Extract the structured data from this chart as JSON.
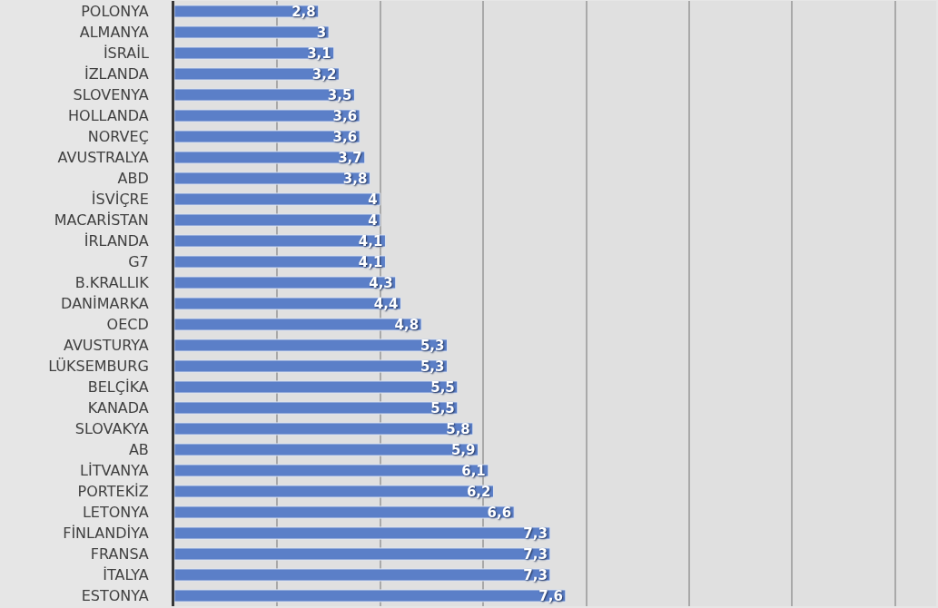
{
  "chart_data": {
    "type": "bar",
    "orientation": "horizontal",
    "categories": [
      "POLONYA",
      "ALMANYA",
      "İSRAİL",
      "İZLANDA",
      "SLOVENYA",
      "HOLLANDA",
      "NORVEÇ",
      "AVUSTRALYA",
      "ABD",
      "İSVİÇRE",
      "MACARİSTAN",
      "İRLANDA",
      "G7",
      "B.KRALLIK",
      "DANİMARKA",
      "OECD",
      "AVUSTURYA",
      "LÜKSEMBURG",
      "BELÇİKA",
      "KANADA",
      "SLOVAKYA",
      "AB",
      "LİTVANYA",
      "PORTEKİZ",
      "LETONYA",
      "FİNLANDİYA",
      "FRANSA",
      "İTALYA",
      "ESTONYA"
    ],
    "values": [
      2.8,
      3,
      3.1,
      3.2,
      3.5,
      3.6,
      3.6,
      3.7,
      3.8,
      4,
      4,
      4.1,
      4.1,
      4.3,
      4.4,
      4.8,
      5.3,
      5.3,
      5.5,
      5.5,
      5.8,
      5.9,
      6.1,
      6.2,
      6.6,
      7.3,
      7.3,
      7.3,
      7.6
    ],
    "value_labels": [
      "2,8",
      "3",
      "3,1",
      "3,2",
      "3,5",
      "3,6",
      "3,6",
      "3,7",
      "3,8",
      "4",
      "4",
      "4,1",
      "4,1",
      "4,3",
      "4,4",
      "4,8",
      "5,3",
      "5,3",
      "5,5",
      "5,5",
      "5,8",
      "5,9",
      "6,1",
      "6,2",
      "6,6",
      "7,3",
      "7,3",
      "7,3",
      "7,6"
    ],
    "color": "#5b7fc8",
    "xlim": [
      0,
      14.8
    ],
    "xticks": [
      {
        "value": 2,
        "label": null
      },
      {
        "value": 4,
        "label": null
      },
      {
        "value": 6,
        "label": null
      },
      {
        "value": 8,
        "label": null
      },
      {
        "value": 10,
        "label": null
      },
      {
        "value": 12,
        "label": null
      },
      {
        "value": 14,
        "label": null
      }
    ],
    "tick_labels": "y",
    "grid": "x"
  }
}
